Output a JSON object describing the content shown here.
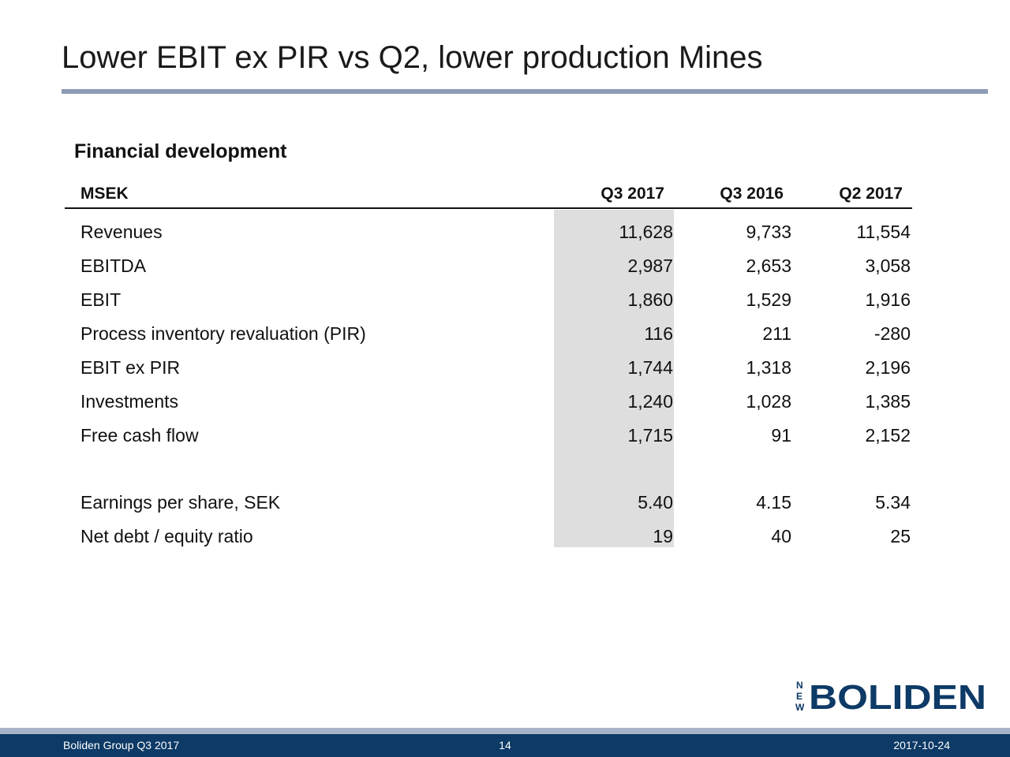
{
  "slide": {
    "title": "Lower EBIT ex PIR vs Q2, lower production Mines",
    "subtitle": "Financial development"
  },
  "table": {
    "unit_label": "MSEK",
    "columns": [
      "Q3 2017",
      "Q3 2016",
      "Q2 2017"
    ],
    "highlighted_column": "Q3 2017",
    "rows": [
      {
        "label": "Revenues",
        "values": [
          "11,628",
          "9,733",
          "11,554"
        ]
      },
      {
        "label": "EBITDA",
        "values": [
          "2,987",
          "2,653",
          "3,058"
        ]
      },
      {
        "label": "EBIT",
        "values": [
          "1,860",
          "1,529",
          "1,916"
        ]
      },
      {
        "label": "Process inventory revaluation (PIR)",
        "values": [
          "116",
          "211",
          "-280"
        ]
      },
      {
        "label": "EBIT ex PIR",
        "values": [
          "1,744",
          "1,318",
          "2,196"
        ]
      },
      {
        "label": "Investments",
        "values": [
          "1,240",
          "1,028",
          "1,385"
        ]
      },
      {
        "label": "Free cash flow",
        "values": [
          "1,715",
          "91",
          "2,152"
        ]
      },
      {
        "label": "Earnings per share, SEK",
        "values": [
          "5.40",
          "4.15",
          "5.34"
        ]
      },
      {
        "label": "Net debt / equity ratio",
        "values": [
          "19",
          "40",
          "25"
        ]
      }
    ]
  },
  "logo": {
    "text": "BOLIDEN",
    "side_text": [
      "N",
      "E",
      "W"
    ]
  },
  "footer": {
    "left": "Boliden Group Q3 2017",
    "page": "14",
    "date": "2017-10-24"
  },
  "colors": {
    "accent_rule": "#8d9bb6",
    "footer_band": "#0d3a66",
    "logo_blue": "#0d3a66",
    "column_shade": "#dedede"
  }
}
